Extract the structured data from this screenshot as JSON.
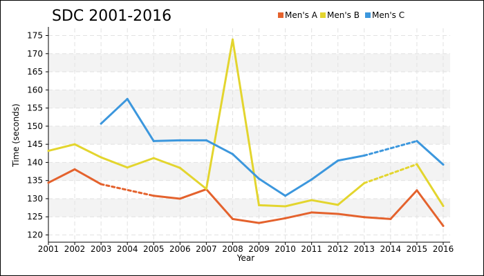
{
  "chart_data": {
    "type": "line",
    "title": "SDC 2001-2016",
    "xlabel": "Year",
    "ylabel": "Time (seconds)",
    "categories": [
      "2001",
      "2002",
      "2003",
      "2004",
      "2005",
      "2006",
      "2007",
      "2008",
      "2009",
      "2010",
      "2011",
      "2012",
      "2013",
      "2014",
      "2015",
      "2016"
    ],
    "ylim": [
      118,
      177
    ],
    "yticks": [
      120,
      125,
      130,
      135,
      140,
      145,
      150,
      155,
      160,
      165,
      170,
      175
    ],
    "grid": true,
    "legend_position": "top-right",
    "series": [
      {
        "name": "Men's A",
        "color": "#e4622d",
        "values": [
          134.4,
          138.1,
          134.0,
          null,
          130.8,
          130.0,
          132.6,
          124.4,
          123.3,
          124.6,
          126.2,
          125.8,
          124.9,
          124.4,
          132.3,
          122.5
        ],
        "dashed_segments": [
          [
            2,
            4
          ]
        ]
      },
      {
        "name": "Men's B",
        "color": "#e3d52e",
        "values": [
          143.2,
          145.0,
          141.4,
          138.6,
          141.2,
          138.5,
          132.7,
          173.9,
          128.2,
          127.9,
          129.6,
          128.3,
          134.3,
          null,
          139.5,
          128.0
        ],
        "dashed_segments": [
          [
            12,
            14
          ]
        ]
      },
      {
        "name": "Men's C",
        "color": "#3c97dd",
        "values": [
          null,
          null,
          150.7,
          157.5,
          145.9,
          146.1,
          146.1,
          142.3,
          135.5,
          130.8,
          135.3,
          140.5,
          141.9,
          null,
          145.9,
          139.4
        ],
        "dashed_segments": [
          [
            4,
            6
          ],
          [
            12,
            14
          ]
        ]
      }
    ]
  }
}
